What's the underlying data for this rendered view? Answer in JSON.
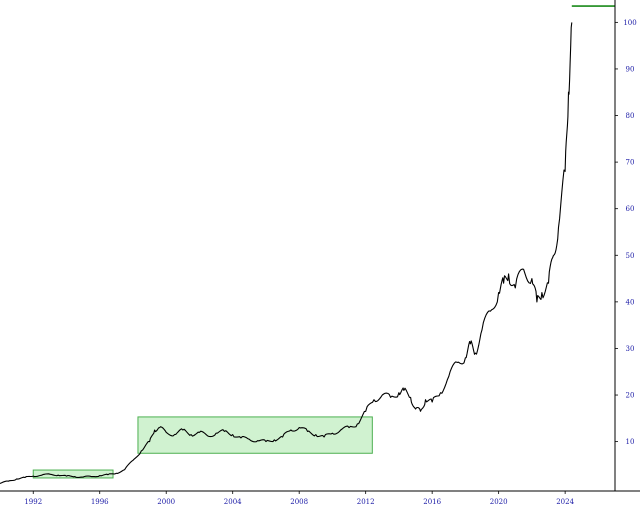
{
  "chart_data": {
    "type": "line",
    "title": "",
    "xlabel": "",
    "ylabel": "",
    "x_ticks": [
      "1992",
      "1996",
      "2000",
      "2004",
      "2008",
      "2012",
      "2016",
      "2020",
      "2024"
    ],
    "y_ticks": [
      "10",
      "20",
      "30",
      "40",
      "50",
      "60",
      "70",
      "80",
      "90",
      "100"
    ],
    "xlim": [
      1990.0,
      2027.0
    ],
    "ylim": [
      -0.6,
      104.8
    ],
    "grid": false,
    "series": [
      {
        "color": "#000000",
        "x": [
          1990.0,
          1990.5,
          1991.0,
          1991.5,
          1992.0,
          1992.5,
          1993.0,
          1993.5,
          1994.0,
          1994.5,
          1995.0,
          1995.5,
          1996.0,
          1996.5,
          1997.0,
          1997.5,
          1998.0,
          1998.5,
          1999.0,
          1999.3,
          1999.6,
          2000.0,
          2000.5,
          2001.0,
          2001.5,
          2002.0,
          2002.5,
          2003.0,
          2003.5,
          2004.0,
          2004.5,
          2005.0,
          2005.5,
          2006.0,
          2006.5,
          2007.0,
          2007.5,
          2008.0,
          2008.5,
          2009.0,
          2009.5,
          2010.0,
          2010.5,
          2011.0,
          2011.5,
          2012.0,
          2012.5,
          2013.0,
          2013.5,
          2014.0,
          2014.3,
          2014.7,
          2015.0,
          2015.3,
          2015.6,
          2016.0,
          2016.5,
          2017.0,
          2017.5,
          2018.0,
          2018.3,
          2018.6,
          2019.0,
          2019.5,
          2020.0,
          2020.3,
          2020.6,
          2021.0,
          2021.5,
          2022.0,
          2022.3,
          2022.6,
          2023.0,
          2023.3,
          2023.6,
          2024.0,
          2024.2,
          2024.4
        ],
        "y": [
          1.0,
          1.5,
          2.0,
          2.3,
          2.6,
          2.8,
          3.0,
          2.8,
          2.6,
          2.5,
          2.4,
          2.5,
          2.7,
          2.9,
          3.2,
          4.0,
          6.0,
          8.0,
          10.0,
          12.5,
          13.0,
          12.0,
          11.5,
          12.5,
          11.5,
          12.0,
          11.2,
          11.8,
          12.2,
          11.5,
          10.8,
          10.5,
          10.2,
          10.0,
          10.4,
          11.0,
          12.5,
          13.0,
          12.2,
          11.5,
          11.0,
          11.8,
          12.5,
          13.0,
          13.8,
          16.5,
          19.0,
          20.0,
          19.5,
          20.5,
          21.0,
          19.5,
          17.0,
          16.5,
          19.0,
          18.5,
          20.5,
          24.0,
          27.0,
          28.0,
          31.0,
          29.0,
          34.0,
          38.0,
          42.0,
          44.0,
          46.0,
          43.0,
          47.0,
          45.0,
          40.0,
          42.0,
          44.0,
          50.0,
          56.0,
          68.0,
          85.0,
          100.0
        ]
      },
      {
        "color": "#1a8a1a",
        "x": [
          2024.4,
          2027.0
        ],
        "y": [
          103.5,
          103.5
        ]
      }
    ],
    "annotations": [
      {
        "type": "box",
        "x": [
          1998.3,
          2012.4
        ],
        "y": [
          7.5,
          15.3
        ],
        "fill": "#c8f0c8",
        "stroke": "#4caf50"
      },
      {
        "type": "box",
        "x": [
          1992.0,
          1996.8
        ],
        "y": [
          2.2,
          3.9
        ],
        "fill": "#c8f0c8",
        "stroke": "#4caf50"
      }
    ]
  }
}
